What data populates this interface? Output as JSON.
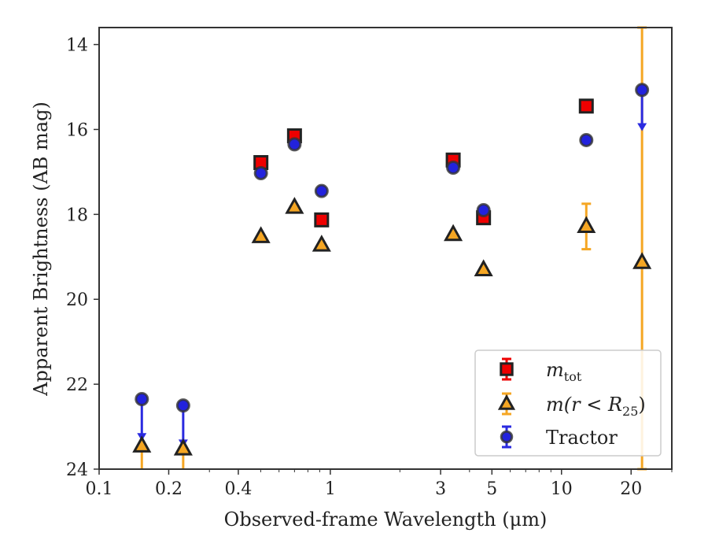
{
  "chart_data": {
    "type": "scatter",
    "title": "",
    "xlabel": "Observed-frame Wavelength (μm)",
    "ylabel": "Apparent Brightness (AB mag)",
    "xscale": "log",
    "xlim": [
      0.1,
      30
    ],
    "ylim": [
      24,
      13.6
    ],
    "y_inverted": true,
    "grid": false,
    "legend_position": "lower-right",
    "x_ticks": [
      {
        "value": 0.1,
        "label": "0.1"
      },
      {
        "value": 0.2,
        "label": "0.2"
      },
      {
        "value": 0.4,
        "label": "0.4"
      },
      {
        "value": 1,
        "label": "1"
      },
      {
        "value": 3,
        "label": "3"
      },
      {
        "value": 5,
        "label": "5"
      },
      {
        "value": 10,
        "label": "10"
      },
      {
        "value": 20,
        "label": "20"
      }
    ],
    "y_ticks": [
      {
        "value": 14,
        "label": "14"
      },
      {
        "value": 16,
        "label": "16"
      },
      {
        "value": 18,
        "label": "18"
      },
      {
        "value": 20,
        "label": "20"
      },
      {
        "value": 22,
        "label": "22"
      },
      {
        "value": 24,
        "label": "24"
      }
    ],
    "series": [
      {
        "key": "mtot",
        "marker": "square",
        "color": "#ee0000",
        "edge_color": "#222222",
        "legend_main": "m",
        "legend_sub": "tot",
        "points": [
          {
            "x": 0.501,
            "y": 16.78
          },
          {
            "x": 0.7,
            "y": 16.15
          },
          {
            "x": 0.917,
            "y": 18.13
          },
          {
            "x": 3.4,
            "y": 16.72
          },
          {
            "x": 4.6,
            "y": 18.08
          },
          {
            "x": 12.8,
            "y": 15.45
          }
        ]
      },
      {
        "key": "mr25",
        "marker": "triangle",
        "color": "#f5a623",
        "edge_color": "#222222",
        "legend_main": "m(r < R",
        "legend_sub": "25",
        "legend_close": ")",
        "points": [
          {
            "x": 0.153,
            "y": 23.45,
            "yerr_to": 24.0
          },
          {
            "x": 0.231,
            "y": 23.52,
            "yerr_to": 24.0
          },
          {
            "x": 0.501,
            "y": 18.52
          },
          {
            "x": 0.7,
            "y": 17.83
          },
          {
            "x": 0.917,
            "y": 18.72
          },
          {
            "x": 3.4,
            "y": 18.47
          },
          {
            "x": 4.6,
            "y": 19.3
          },
          {
            "x": 12.8,
            "y": 18.28,
            "yerr": [
              17.75,
              18.82
            ]
          },
          {
            "x": 22.3,
            "y": 19.13,
            "yerr": [
              13.6,
              24.0
            ]
          }
        ]
      },
      {
        "key": "tractor",
        "marker": "circle",
        "color": "#2222dd",
        "edge_color": "#333333",
        "legend_main": "Tractor",
        "points": [
          {
            "x": 0.153,
            "y": 22.35,
            "upper_limit_to": 23.3
          },
          {
            "x": 0.231,
            "y": 22.5,
            "upper_limit_to": 23.45
          },
          {
            "x": 0.501,
            "y": 17.03
          },
          {
            "x": 0.7,
            "y": 16.35
          },
          {
            "x": 0.917,
            "y": 17.45
          },
          {
            "x": 3.4,
            "y": 16.9
          },
          {
            "x": 4.6,
            "y": 17.9
          },
          {
            "x": 12.8,
            "y": 16.25
          },
          {
            "x": 22.3,
            "y": 15.07,
            "upper_limit_to": 16.0
          }
        ]
      }
    ]
  }
}
